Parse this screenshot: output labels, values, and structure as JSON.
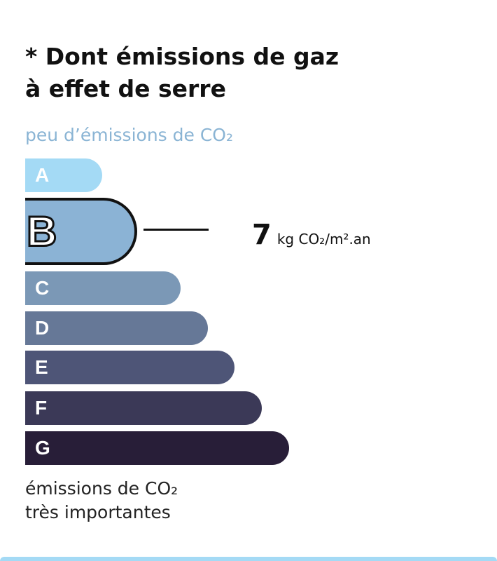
{
  "title_line1": "* Dont émissions de gaz",
  "title_line2": "à effet de serre",
  "top_label": "peu d’émissions de CO₂",
  "bottom_label_line1": "émissions de CO₂",
  "bottom_label_line2": "très importantes",
  "classes": [
    {
      "letter": "A",
      "color": "#a4daf5"
    },
    {
      "letter": "B",
      "color": "#8bb3d5"
    },
    {
      "letter": "C",
      "color": "#7b98b6"
    },
    {
      "letter": "D",
      "color": "#667897"
    },
    {
      "letter": "E",
      "color": "#4e5577"
    },
    {
      "letter": "F",
      "color": "#3b3957"
    },
    {
      "letter": "G",
      "color": "#281e38"
    }
  ],
  "selected_class": "B",
  "value": "7",
  "unit": "kg CO₂/m².an"
}
